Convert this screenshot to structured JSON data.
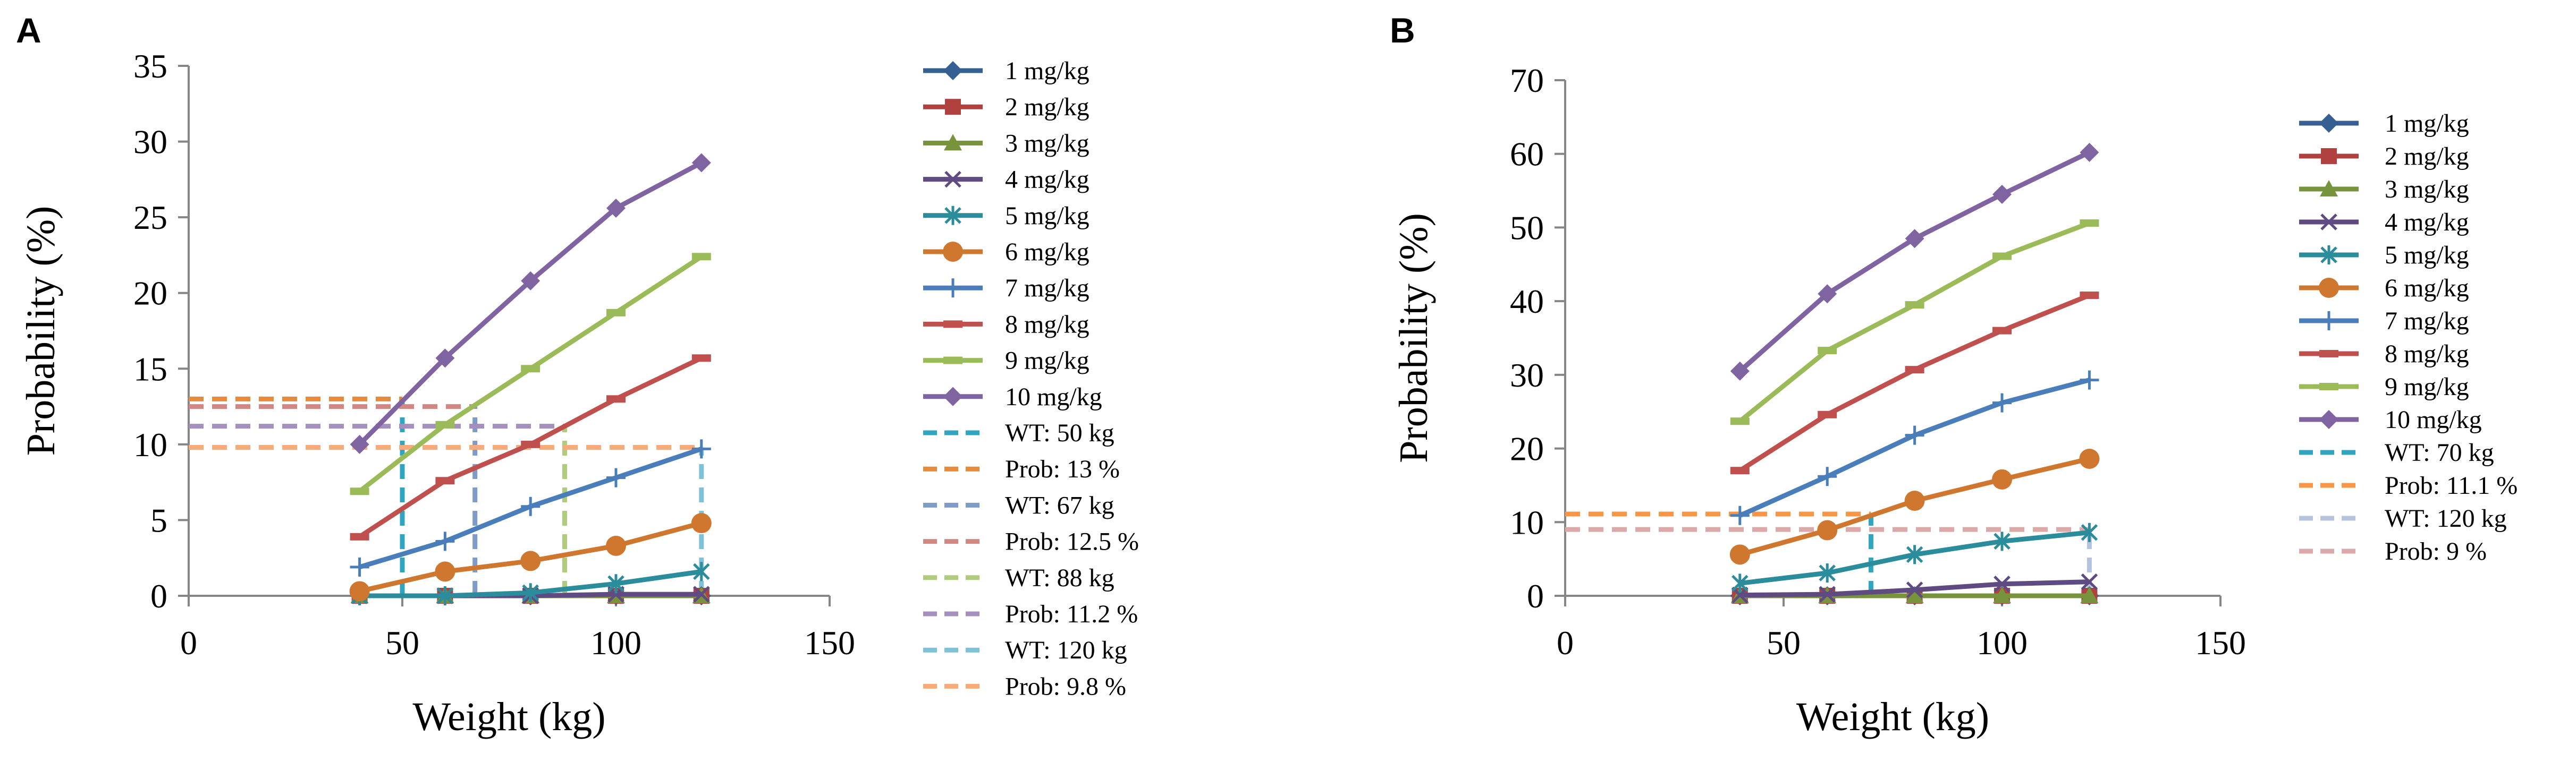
{
  "chart_data": [
    {
      "panel_label": "A",
      "type": "line",
      "xlabel": "Weight (kg)",
      "ylabel": "Probability (%)",
      "xlim": [
        0,
        150
      ],
      "ylim": [
        0,
        35
      ],
      "xticks": [
        0,
        50,
        100,
        150
      ],
      "yticks": [
        0,
        5,
        10,
        15,
        20,
        25,
        30,
        35
      ],
      "grid": false,
      "legend_position": "right",
      "x": [
        40,
        60,
        80,
        100,
        120
      ],
      "series": [
        {
          "name": "1 mg/kg",
          "color": "#366092",
          "marker": "diamond",
          "values": [
            0,
            0,
            0,
            0,
            0
          ]
        },
        {
          "name": "2 mg/kg",
          "color": "#b0413e",
          "marker": "square",
          "values": [
            0,
            0,
            0,
            0,
            0
          ]
        },
        {
          "name": "3 mg/kg",
          "color": "#77933c",
          "marker": "triangle",
          "values": [
            0,
            0,
            0,
            0,
            0
          ]
        },
        {
          "name": "4 mg/kg",
          "color": "#5f4a82",
          "marker": "x",
          "values": [
            0,
            0,
            0,
            0.1,
            0.1
          ]
        },
        {
          "name": "5 mg/kg",
          "color": "#2b8c9c",
          "marker": "asterisk",
          "values": [
            0,
            0,
            0.2,
            0.8,
            1.6
          ]
        },
        {
          "name": "6 mg/kg",
          "color": "#d0772f",
          "marker": "circle",
          "values": [
            0.3,
            1.6,
            2.3,
            3.3,
            4.8
          ]
        },
        {
          "name": "7 mg/kg",
          "color": "#4a7ebb",
          "marker": "plus",
          "values": [
            1.9,
            3.6,
            5.9,
            7.8,
            9.7
          ]
        },
        {
          "name": "8 mg/kg",
          "color": "#c0504d",
          "marker": "dash",
          "values": [
            3.9,
            7.6,
            10.0,
            13.0,
            15.7
          ]
        },
        {
          "name": "9 mg/kg",
          "color": "#9bbb59",
          "marker": "dash",
          "values": [
            6.9,
            11.3,
            15.0,
            18.7,
            22.4
          ]
        },
        {
          "name": "10 mg/kg",
          "color": "#8064a2",
          "marker": "diamond",
          "values": [
            10.0,
            15.7,
            20.8,
            25.6,
            28.6
          ]
        }
      ],
      "reference_lines": [
        {
          "name": "WT: 50 kg",
          "color": "#31a5c0",
          "orientation": "vertical",
          "x": 50,
          "y_to": 13
        },
        {
          "name": "Prob: 13 %",
          "color": "#e9893a",
          "orientation": "horizontal",
          "y": 13,
          "x_to": 50
        },
        {
          "name": "WT: 67 kg",
          "color": "#7f9cc9",
          "orientation": "vertical",
          "x": 67,
          "y_to": 12.5
        },
        {
          "name": "Prob: 12.5 %",
          "color": "#d48682",
          "orientation": "horizontal",
          "y": 12.5,
          "x_to": 67
        },
        {
          "name": "WT: 88 kg",
          "color": "#afcb7c",
          "orientation": "vertical",
          "x": 88,
          "y_to": 11.2
        },
        {
          "name": "Prob: 11.2 %",
          "color": "#a48fbf",
          "orientation": "horizontal",
          "y": 11.2,
          "x_to": 88
        },
        {
          "name": "WT: 120 kg",
          "color": "#7fc1d6",
          "orientation": "vertical",
          "x": 120,
          "y_to": 9.8
        },
        {
          "name": "Prob: 9.8 %",
          "color": "#f8ab7a",
          "orientation": "horizontal",
          "y": 9.8,
          "x_to": 120
        }
      ]
    },
    {
      "panel_label": "B",
      "type": "line",
      "xlabel": "Weight (kg)",
      "ylabel": "Probability (%)",
      "xlim": [
        0,
        150
      ],
      "ylim": [
        0,
        70
      ],
      "xticks": [
        0,
        50,
        100,
        150
      ],
      "yticks": [
        0,
        10,
        20,
        30,
        40,
        50,
        60,
        70
      ],
      "grid": false,
      "legend_position": "right",
      "x": [
        40,
        60,
        80,
        100,
        120
      ],
      "series": [
        {
          "name": "1 mg/kg",
          "color": "#366092",
          "marker": "diamond",
          "values": [
            0,
            0,
            0,
            0,
            0
          ]
        },
        {
          "name": "2 mg/kg",
          "color": "#b0413e",
          "marker": "square",
          "values": [
            0,
            0,
            0,
            0,
            0
          ]
        },
        {
          "name": "3 mg/kg",
          "color": "#77933c",
          "marker": "triangle",
          "values": [
            0,
            0,
            0,
            0,
            0
          ]
        },
        {
          "name": "4 mg/kg",
          "color": "#5f4a82",
          "marker": "x",
          "values": [
            0.1,
            0.2,
            0.8,
            1.6,
            1.9
          ]
        },
        {
          "name": "5 mg/kg",
          "color": "#2b8c9c",
          "marker": "asterisk",
          "values": [
            1.7,
            3.1,
            5.6,
            7.4,
            8.6
          ]
        },
        {
          "name": "6 mg/kg",
          "color": "#d0772f",
          "marker": "circle",
          "values": [
            5.6,
            8.9,
            12.9,
            15.8,
            18.6
          ]
        },
        {
          "name": "7 mg/kg",
          "color": "#4a7ebb",
          "marker": "plus",
          "values": [
            10.9,
            16.2,
            21.8,
            26.2,
            29.3
          ]
        },
        {
          "name": "8 mg/kg",
          "color": "#c0504d",
          "marker": "dash",
          "values": [
            17.0,
            24.6,
            30.7,
            36.0,
            40.8
          ]
        },
        {
          "name": "9 mg/kg",
          "color": "#9bbb59",
          "marker": "dash",
          "values": [
            23.7,
            33.3,
            39.5,
            46.1,
            50.6
          ]
        },
        {
          "name": "10 mg/kg",
          "color": "#8064a2",
          "marker": "diamond",
          "values": [
            30.5,
            41.0,
            48.5,
            54.5,
            60.2
          ]
        }
      ],
      "reference_lines": [
        {
          "name": "WT: 70 kg",
          "color": "#31a5c0",
          "orientation": "vertical",
          "x": 70,
          "y_to": 11.1
        },
        {
          "name": "Prob: 11.1 %",
          "color": "#f79646",
          "orientation": "horizontal",
          "y": 11.1,
          "x_to": 70
        },
        {
          "name": "WT: 120 kg",
          "color": "#b4c3de",
          "orientation": "vertical",
          "x": 120,
          "y_to": 9
        },
        {
          "name": "Prob: 9 %",
          "color": "#dba9a7",
          "orientation": "horizontal",
          "y": 9,
          "x_to": 120
        }
      ]
    }
  ]
}
